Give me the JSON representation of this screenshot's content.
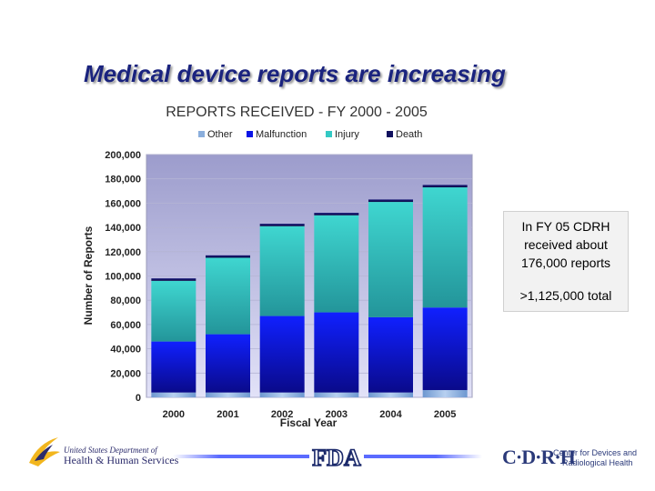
{
  "slide": {
    "title": "Medical device reports are increasing"
  },
  "chart_data": {
    "type": "stacked-bar",
    "title": "REPORTS RECEIVED - FY 2000 - 2005",
    "xlabel": "Fiscal Year",
    "ylabel": "Number of Reports",
    "ylim": [
      0,
      200000
    ],
    "yticks": [
      "0",
      "20,000",
      "40,000",
      "60,000",
      "80,000",
      "100,000",
      "120,000",
      "140,000",
      "160,000",
      "180,000",
      "200,000"
    ],
    "categories": [
      "2000",
      "2001",
      "2002",
      "2003",
      "2004",
      "2005"
    ],
    "series": [
      {
        "name": "Other",
        "color": "#8aaedc",
        "values": [
          4000,
          4000,
          4000,
          4000,
          4000,
          6000
        ]
      },
      {
        "name": "Malfunction",
        "color": "#0a14e6",
        "values": [
          42000,
          48000,
          63000,
          66000,
          62000,
          68000
        ]
      },
      {
        "name": "Injury",
        "color": "#33c9c4",
        "values": [
          50000,
          63000,
          74000,
          80000,
          95000,
          99000
        ]
      },
      {
        "name": "Death",
        "color": "#10105e",
        "values": [
          2000,
          2000,
          2000,
          2000,
          2000,
          2000
        ]
      }
    ],
    "legend_position": "top"
  },
  "callout": {
    "text1": "In FY 05 CDRH received about 176,000 reports",
    "text2": ">1,125,000 total"
  },
  "logos": {
    "hhs_line1": "United States Department of",
    "hhs_line2": "Health & Human Services",
    "fda": "FDA",
    "cdrh_mark": "C·D·R·H",
    "cdrh_line1": "Center for Devices and",
    "cdrh_line2": "Radiological Health"
  }
}
